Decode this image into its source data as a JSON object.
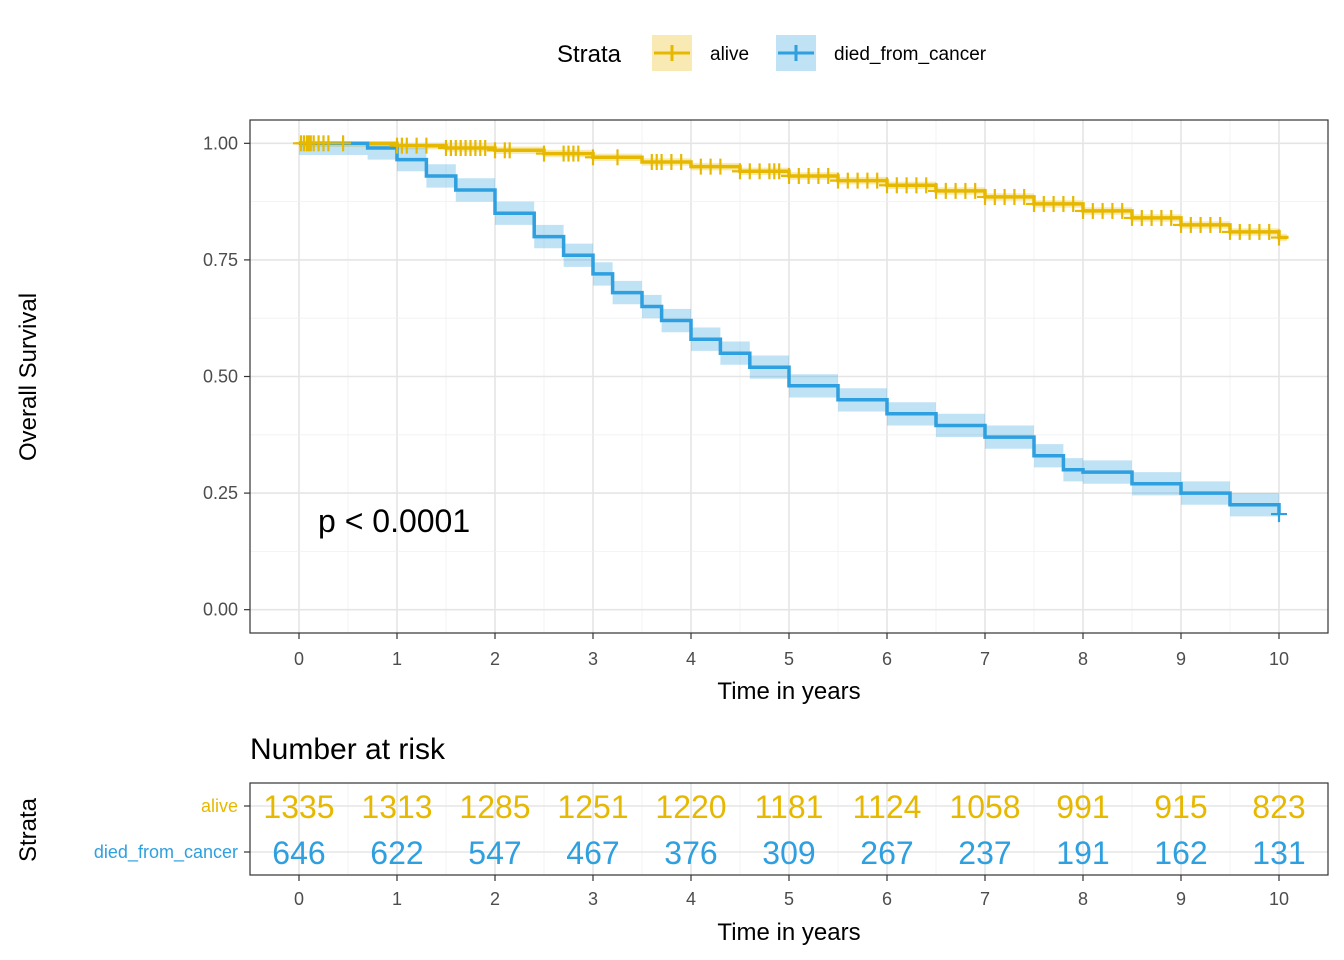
{
  "chart_data": {
    "type": "line",
    "subtype": "kaplan-meier",
    "legend": {
      "title": "Strata",
      "placement": "top",
      "entries": [
        "alive",
        "died_from_cancer"
      ]
    },
    "colors": {
      "alive": "#E7B800",
      "died_from_cancer": "#2E9FDF"
    },
    "xlabel": "Time in years",
    "ylabel": "Overall Survival",
    "xlim": [
      -0.5,
      10.5
    ],
    "ylim": [
      -0.05,
      1.05
    ],
    "x_ticks": [
      0,
      1,
      2,
      3,
      4,
      5,
      6,
      7,
      8,
      9,
      10
    ],
    "x_tick_labels": [
      "0",
      "1",
      "2",
      "3",
      "4",
      "5",
      "6",
      "7",
      "8",
      "9",
      "10"
    ],
    "y_ticks": [
      0,
      0.25,
      0.5,
      0.75,
      1.0
    ],
    "y_tick_labels": [
      "0.00",
      "0.25",
      "0.50",
      "0.75",
      "1.00"
    ],
    "annotation": "p < 0.0001",
    "grid": true,
    "series": [
      {
        "name": "alive",
        "color": "#E7B800",
        "points": [
          [
            0,
            1.0
          ],
          [
            0.5,
            1.0
          ],
          [
            1,
            0.995
          ],
          [
            1.5,
            0.99
          ],
          [
            2,
            0.985
          ],
          [
            2.5,
            0.978
          ],
          [
            3,
            0.97
          ],
          [
            3.5,
            0.96
          ],
          [
            4,
            0.95
          ],
          [
            4.5,
            0.94
          ],
          [
            5,
            0.93
          ],
          [
            5.5,
            0.92
          ],
          [
            6,
            0.91
          ],
          [
            6.5,
            0.898
          ],
          [
            7,
            0.885
          ],
          [
            7.5,
            0.87
          ],
          [
            8,
            0.855
          ],
          [
            8.5,
            0.84
          ],
          [
            9,
            0.825
          ],
          [
            9.5,
            0.81
          ],
          [
            10,
            0.798
          ],
          [
            10.08,
            0.795
          ]
        ],
        "ci_halfwidth": 0.008,
        "censor_times": [
          0.02,
          0.05,
          0.08,
          0.1,
          0.12,
          0.15,
          0.2,
          0.25,
          0.3,
          0.45,
          1.0,
          1.05,
          1.1,
          1.2,
          1.3,
          1.5,
          1.55,
          1.6,
          1.65,
          1.7,
          1.75,
          1.8,
          1.85,
          1.9,
          2.0,
          2.1,
          2.15,
          2.5,
          2.7,
          2.75,
          2.8,
          2.85,
          3.0,
          3.25,
          3.6,
          3.65,
          3.7,
          3.8,
          3.9,
          4.1,
          4.2,
          4.3,
          4.5,
          4.6,
          4.7,
          4.8,
          4.85,
          4.9,
          5.0,
          5.1,
          5.2,
          5.3,
          5.4,
          5.5,
          5.6,
          5.7,
          5.8,
          5.9,
          6.0,
          6.1,
          6.2,
          6.3,
          6.4,
          6.5,
          6.6,
          6.7,
          6.8,
          6.9,
          7.0,
          7.1,
          7.2,
          7.3,
          7.4,
          7.5,
          7.6,
          7.7,
          7.8,
          7.9,
          8.0,
          8.1,
          8.2,
          8.3,
          8.4,
          8.5,
          8.6,
          8.7,
          8.8,
          8.9,
          9.0,
          9.1,
          9.2,
          9.3,
          9.4,
          9.5,
          9.6,
          9.7,
          9.8,
          9.9,
          10.0
        ]
      },
      {
        "name": "died_from_cancer",
        "color": "#2E9FDF",
        "points": [
          [
            0,
            1.0
          ],
          [
            0.5,
            1.0
          ],
          [
            0.7,
            0.99
          ],
          [
            1,
            0.965
          ],
          [
            1.3,
            0.93
          ],
          [
            1.6,
            0.9
          ],
          [
            2,
            0.85
          ],
          [
            2.4,
            0.8
          ],
          [
            2.7,
            0.76
          ],
          [
            3,
            0.72
          ],
          [
            3.2,
            0.68
          ],
          [
            3.5,
            0.65
          ],
          [
            3.7,
            0.62
          ],
          [
            4,
            0.58
          ],
          [
            4.3,
            0.55
          ],
          [
            4.6,
            0.52
          ],
          [
            5,
            0.48
          ],
          [
            5.5,
            0.45
          ],
          [
            6,
            0.42
          ],
          [
            6.5,
            0.395
          ],
          [
            7,
            0.37
          ],
          [
            7.5,
            0.33
          ],
          [
            7.8,
            0.3
          ],
          [
            8,
            0.295
          ],
          [
            8.5,
            0.27
          ],
          [
            9,
            0.25
          ],
          [
            9.5,
            0.225
          ],
          [
            10,
            0.205
          ]
        ],
        "ci_halfwidth": 0.025,
        "censor_times": [
          10.0
        ]
      }
    ],
    "risk_table": {
      "title": "Number at risk",
      "ylabel": "Strata",
      "xlabel": "Time in years",
      "times": [
        0,
        1,
        2,
        3,
        4,
        5,
        6,
        7,
        8,
        9,
        10
      ],
      "rows": [
        {
          "name": "alive",
          "color": "#E7B800",
          "values": [
            1335,
            1313,
            1285,
            1251,
            1220,
            1181,
            1124,
            1058,
            991,
            915,
            823
          ]
        },
        {
          "name": "died_from_cancer",
          "color": "#2E9FDF",
          "values": [
            646,
            622,
            547,
            467,
            376,
            309,
            267,
            237,
            191,
            162,
            131
          ]
        }
      ]
    }
  }
}
